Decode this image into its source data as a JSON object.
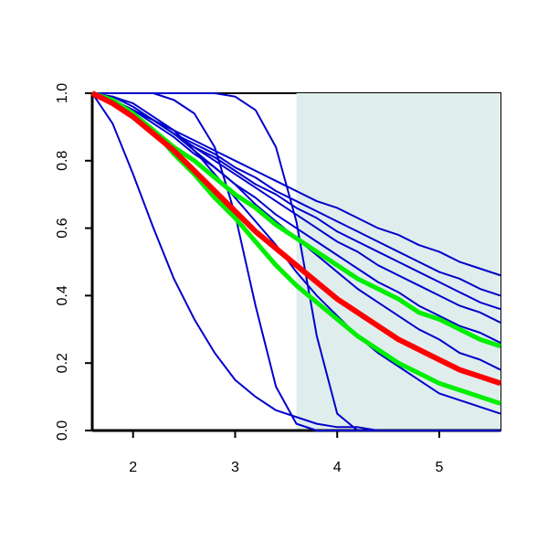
{
  "chart_data": {
    "type": "line",
    "x": [
      1.6,
      1.8,
      2.0,
      2.2,
      2.4,
      2.6,
      2.8,
      3.0,
      3.2,
      3.4,
      3.6,
      3.8,
      4.0,
      4.2,
      4.4,
      4.6,
      4.8,
      5.0,
      5.2,
      5.4,
      5.6
    ],
    "series": [
      {
        "color": "#0000cc",
        "values": [
          1,
          0.98,
          0.95,
          0.92,
          0.89,
          0.86,
          0.83,
          0.8,
          0.77,
          0.74,
          0.71,
          0.68,
          0.66,
          0.63,
          0.6,
          0.58,
          0.55,
          0.53,
          0.5,
          0.48,
          0.46
        ]
      },
      {
        "color": "#0000cc",
        "values": [
          1,
          0.98,
          0.95,
          0.92,
          0.88,
          0.85,
          0.82,
          0.78,
          0.75,
          0.71,
          0.68,
          0.65,
          0.62,
          0.59,
          0.56,
          0.53,
          0.5,
          0.47,
          0.45,
          0.42,
          0.4
        ]
      },
      {
        "color": "#0000cc",
        "values": [
          1,
          0.98,
          0.95,
          0.92,
          0.88,
          0.84,
          0.81,
          0.77,
          0.73,
          0.7,
          0.66,
          0.63,
          0.59,
          0.56,
          0.53,
          0.5,
          0.47,
          0.44,
          0.41,
          0.38,
          0.36
        ]
      },
      {
        "color": "#0000cc",
        "values": [
          1,
          0.98,
          0.95,
          0.92,
          0.88,
          0.84,
          0.8,
          0.76,
          0.72,
          0.68,
          0.64,
          0.6,
          0.56,
          0.53,
          0.49,
          0.46,
          0.43,
          0.4,
          0.37,
          0.35,
          0.32
        ]
      },
      {
        "color": "#0000cc",
        "values": [
          1,
          0.98,
          0.95,
          0.91,
          0.87,
          0.82,
          0.78,
          0.73,
          0.69,
          0.64,
          0.6,
          0.56,
          0.52,
          0.48,
          0.44,
          0.41,
          0.37,
          0.34,
          0.31,
          0.29,
          0.26
        ]
      },
      {
        "color": "#0000cc",
        "values": [
          1,
          0.99,
          0.96,
          0.92,
          0.88,
          0.83,
          0.78,
          0.73,
          0.67,
          0.62,
          0.57,
          0.52,
          0.47,
          0.42,
          0.38,
          0.34,
          0.3,
          0.27,
          0.23,
          0.21,
          0.18
        ]
      },
      {
        "color": "#0000cc",
        "values": [
          1,
          0.99,
          0.97,
          0.93,
          0.89,
          0.83,
          0.76,
          0.69,
          0.62,
          0.55,
          0.47,
          0.4,
          0.34,
          0.28,
          0.23,
          0.19,
          0.15,
          0.11,
          0.09,
          0.07,
          0.05
        ]
      },
      {
        "color": "#0000cc",
        "values": [
          1,
          0.91,
          0.76,
          0.6,
          0.45,
          0.33,
          0.23,
          0.15,
          0.1,
          0.06,
          0.04,
          0.02,
          0.01,
          0.01,
          0,
          0,
          0,
          0,
          0,
          0,
          0
        ]
      },
      {
        "color": "#0000cc",
        "values": [
          1,
          1,
          1,
          1,
          0.98,
          0.94,
          0.84,
          0.64,
          0.37,
          0.13,
          0.02,
          0,
          0,
          0,
          0,
          0,
          0,
          0,
          0,
          0,
          0
        ]
      },
      {
        "color": "#0000cc",
        "values": [
          1,
          1,
          1,
          1,
          1,
          1,
          1,
          0.99,
          0.95,
          0.84,
          0.62,
          0.28,
          0.05,
          0,
          0,
          0,
          0,
          0,
          0,
          0,
          0
        ]
      },
      {
        "color": "#00ee00",
        "values": [
          1,
          0.97,
          0.93,
          0.89,
          0.84,
          0.8,
          0.75,
          0.7,
          0.66,
          0.61,
          0.57,
          0.53,
          0.49,
          0.45,
          0.42,
          0.39,
          0.35,
          0.33,
          0.3,
          0.27,
          0.25
        ]
      },
      {
        "color": "#00ee00",
        "values": [
          1,
          0.98,
          0.94,
          0.89,
          0.82,
          0.76,
          0.69,
          0.63,
          0.56,
          0.49,
          0.43,
          0.38,
          0.33,
          0.28,
          0.24,
          0.2,
          0.17,
          0.14,
          0.12,
          0.1,
          0.08
        ]
      },
      {
        "color": "#ff0000",
        "values": [
          1,
          0.97,
          0.93,
          0.88,
          0.83,
          0.77,
          0.71,
          0.65,
          0.59,
          0.54,
          0.49,
          0.44,
          0.39,
          0.35,
          0.31,
          0.27,
          0.24,
          0.21,
          0.18,
          0.16,
          0.14
        ]
      }
    ],
    "shaded_region": {
      "x": [
        3.6,
        5.6
      ],
      "color": "#e0eded"
    },
    "xlim": [
      1.6,
      5.6
    ],
    "ylim": [
      0,
      1
    ],
    "xticks": [
      2,
      3,
      4,
      5
    ],
    "yticks": [
      {
        "value": 0,
        "label": "0.0"
      },
      0.2,
      0.4,
      0.6,
      0.8,
      {
        "value": 1,
        "label": "1.0"
      }
    ]
  }
}
